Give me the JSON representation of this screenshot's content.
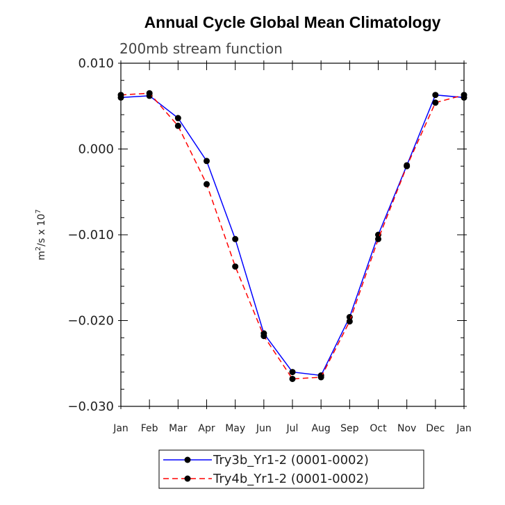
{
  "chart_data": {
    "type": "line",
    "title": "Annual Cycle Global Mean Climatology",
    "subtitle": "200mb stream function",
    "ylabel_base": "m",
    "ylabel_sup1": "2",
    "ylabel_mid": "/s x 10",
    "ylabel_sup2": "7",
    "xlabel": "",
    "categories": [
      "Jan",
      "Feb",
      "Mar",
      "Apr",
      "May",
      "Jun",
      "Jul",
      "Aug",
      "Sep",
      "Oct",
      "Nov",
      "Dec",
      "Jan"
    ],
    "ylim": [
      -0.03,
      0.01
    ],
    "yticks": [
      0.01,
      0.0,
      -0.01,
      -0.02,
      -0.03
    ],
    "ytick_labels": [
      "0.010",
      "0.000",
      "−0.010",
      "−0.020",
      "−0.030"
    ],
    "series": [
      {
        "name": "Try3b_Yr1-2 (0001-0002)",
        "color": "#0000ff",
        "dash": "solid",
        "values": [
          0.006,
          0.0062,
          0.0036,
          -0.0014,
          -0.0105,
          -0.0215,
          -0.026,
          -0.0264,
          -0.0196,
          -0.01,
          -0.0019,
          0.0063,
          0.006
        ]
      },
      {
        "name": "Try4b_Yr1-2 (0001-0002)",
        "color": "#ff0000",
        "dash": "dashed",
        "values": [
          0.0063,
          0.0065,
          0.0027,
          -0.0041,
          -0.0137,
          -0.0218,
          -0.0268,
          -0.0266,
          -0.0201,
          -0.0105,
          -0.002,
          0.0054,
          0.0063
        ]
      }
    ]
  }
}
